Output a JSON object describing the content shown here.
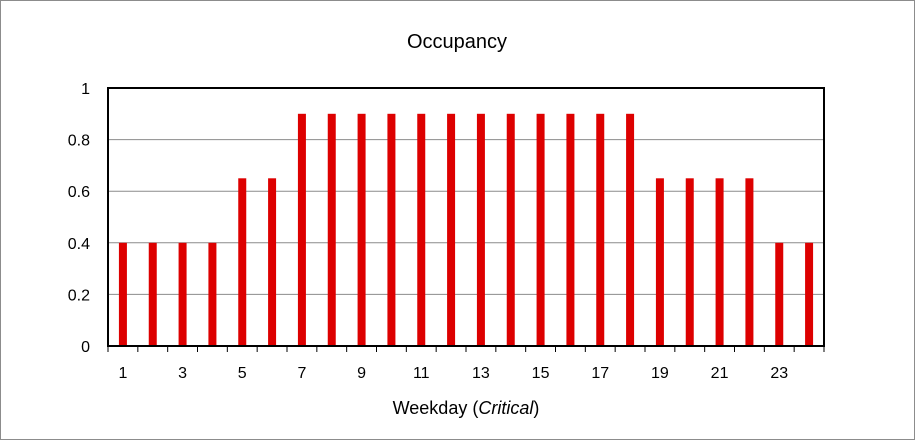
{
  "chart_data": {
    "type": "bar",
    "title": "Occupancy",
    "xlabel": "Weekday",
    "xlabel_qualifier": "Critical",
    "ylabel": "",
    "categories": [
      1,
      2,
      3,
      4,
      5,
      6,
      7,
      8,
      9,
      10,
      11,
      12,
      13,
      14,
      15,
      16,
      17,
      18,
      19,
      20,
      21,
      22,
      23,
      24
    ],
    "x_tick_labels": [
      "1",
      "3",
      "5",
      "7",
      "9",
      "11",
      "13",
      "15",
      "17",
      "19",
      "21",
      "23"
    ],
    "values": [
      0.4,
      0.4,
      0.4,
      0.4,
      0.65,
      0.65,
      0.9,
      0.9,
      0.9,
      0.9,
      0.9,
      0.9,
      0.9,
      0.9,
      0.9,
      0.9,
      0.9,
      0.9,
      0.65,
      0.65,
      0.65,
      0.65,
      0.4,
      0.4
    ],
    "ylim": [
      0,
      1
    ],
    "y_ticks": [
      0,
      0.2,
      0.4,
      0.6,
      0.8,
      1
    ],
    "y_tick_labels": [
      "0",
      "0.2",
      "0.4",
      "0.6",
      "0.8",
      "1"
    ],
    "grid": true,
    "legend": "none",
    "colors": {
      "bar": "#dd0000",
      "grid": "#8c8c8c",
      "axis": "#000000"
    }
  }
}
